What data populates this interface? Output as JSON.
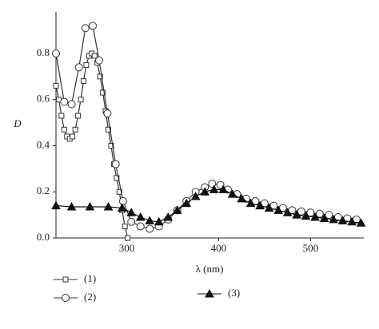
{
  "chart_data": {
    "type": "line",
    "xlabel": "λ (nm)",
    "ylabel": "D",
    "xlim": [
      223,
      558
    ],
    "ylim": [
      0,
      0.98
    ],
    "xticks": [
      300,
      400,
      500
    ],
    "yticks": [
      {
        "value": 0,
        "label": "0.0"
      },
      0.2,
      0.4,
      0.6,
      0.8
    ],
    "series": [
      {
        "name": "(1)",
        "marker": "square",
        "color": "#333333",
        "x": [
          223,
          226,
          229,
          232,
          235,
          238,
          241,
          244,
          247,
          250,
          253,
          256,
          259,
          262,
          265,
          268,
          271,
          274,
          277,
          280,
          283,
          286,
          289,
          292,
          295,
          298,
          301
        ],
        "values": [
          0.66,
          0.6,
          0.53,
          0.47,
          0.44,
          0.43,
          0.44,
          0.47,
          0.53,
          0.6,
          0.68,
          0.75,
          0.79,
          0.8,
          0.79,
          0.76,
          0.7,
          0.63,
          0.55,
          0.47,
          0.4,
          0.32,
          0.26,
          0.2,
          0.12,
          0.05,
          0.0
        ]
      },
      {
        "name": "(2)",
        "marker": "circle",
        "color": "#333333",
        "x": [
          223,
          232,
          240,
          248,
          255,
          263,
          270,
          279,
          288,
          296,
          305,
          315,
          325,
          335,
          345,
          355,
          365,
          375,
          385,
          393,
          402,
          410,
          420,
          430,
          440,
          450,
          460,
          470,
          480,
          490,
          500,
          510,
          520,
          530,
          540,
          550
        ],
        "values": [
          0.8,
          0.59,
          0.58,
          0.74,
          0.91,
          0.92,
          0.77,
          0.54,
          0.32,
          0.16,
          0.07,
          0.05,
          0.04,
          0.05,
          0.08,
          0.12,
          0.16,
          0.2,
          0.22,
          0.235,
          0.23,
          0.21,
          0.19,
          0.17,
          0.16,
          0.15,
          0.14,
          0.13,
          0.12,
          0.115,
          0.11,
          0.105,
          0.1,
          0.09,
          0.085,
          0.08
        ]
      },
      {
        "name": "(3)",
        "marker": "triangle",
        "color": "#111111",
        "x": [
          223,
          240,
          260,
          280,
          295,
          305,
          315,
          325,
          335,
          345,
          355,
          365,
          375,
          385,
          395,
          405,
          415,
          425,
          435,
          445,
          455,
          465,
          475,
          485,
          495,
          505,
          515,
          525,
          535,
          545,
          555
        ],
        "values": [
          0.14,
          0.135,
          0.135,
          0.135,
          0.13,
          0.11,
          0.09,
          0.075,
          0.07,
          0.09,
          0.12,
          0.15,
          0.18,
          0.2,
          0.21,
          0.21,
          0.19,
          0.17,
          0.15,
          0.14,
          0.13,
          0.12,
          0.11,
          0.1,
          0.095,
          0.09,
          0.085,
          0.08,
          0.075,
          0.07,
          0.065
        ]
      }
    ]
  }
}
